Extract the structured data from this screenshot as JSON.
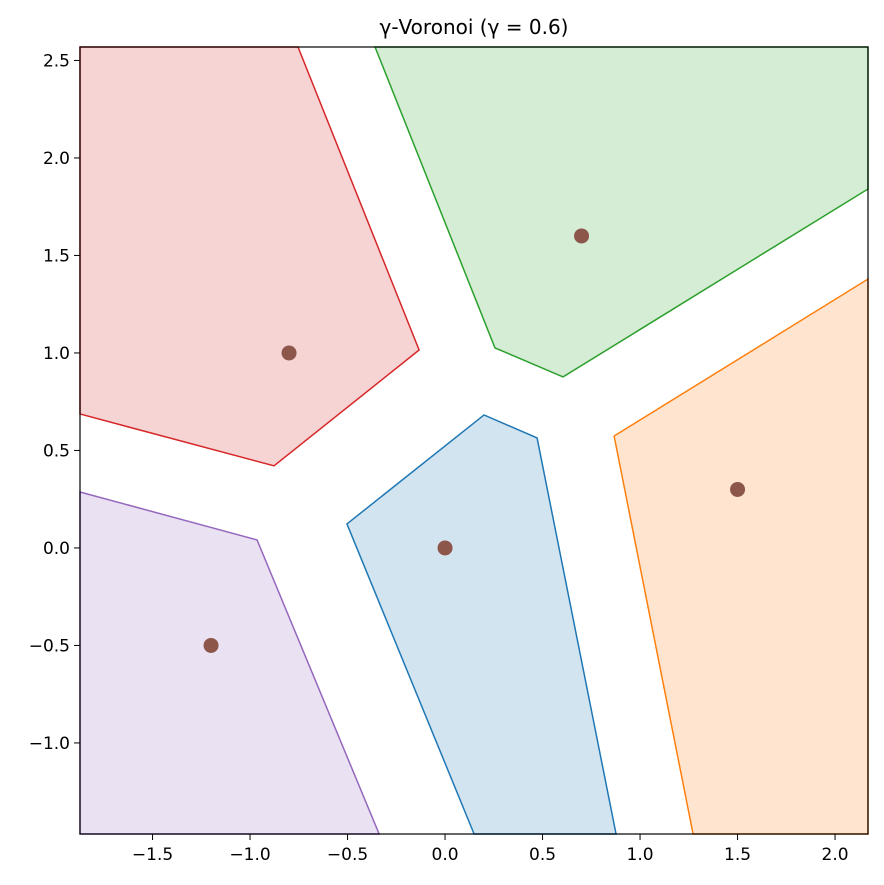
{
  "chart_data": {
    "type": "polygon",
    "title": "γ-Voronoi (γ = 0.6)",
    "xlim": [
      -1.872,
      2.169
    ],
    "ylim": [
      -1.467,
      2.569
    ],
    "xticks": [
      {
        "value": -1.5,
        "label": "−1.5"
      },
      {
        "value": -1.0,
        "label": "−1.0"
      },
      {
        "value": -0.5,
        "label": "−0.5"
      },
      {
        "value": 0.0,
        "label": "0.0"
      },
      {
        "value": 0.5,
        "label": "0.5"
      },
      {
        "value": 1.0,
        "label": "1.0"
      },
      {
        "value": 1.5,
        "label": "1.5"
      },
      {
        "value": 2.0,
        "label": "2.0"
      }
    ],
    "yticks": [
      {
        "value": -1.0,
        "label": "−1.0"
      },
      {
        "value": -0.5,
        "label": "−0.5"
      },
      {
        "value": 0.0,
        "label": "0.0"
      },
      {
        "value": 0.5,
        "label": "0.5"
      },
      {
        "value": 1.0,
        "label": "1.0"
      },
      {
        "value": 1.5,
        "label": "1.5"
      },
      {
        "value": 2.0,
        "label": "2.0"
      },
      {
        "value": 2.5,
        "label": "2.5"
      }
    ],
    "fill_opacity": 0.2,
    "series": [
      {
        "color": "#1f77b4",
        "x": [
          -0.503,
          0.2,
          0.472,
          0.877,
          0.149
        ],
        "y": [
          0.123,
          0.682,
          0.564,
          -1.467,
          -1.467
        ]
      },
      {
        "color": "#ff7f0e",
        "x": [
          0.867,
          2.169,
          2.169,
          1.272
        ],
        "y": [
          0.574,
          1.379,
          -1.467,
          -1.467
        ]
      },
      {
        "color": "#2ca02c",
        "x": [
          -0.359,
          2.169,
          2.169,
          0.605,
          0.256
        ],
        "y": [
          2.569,
          2.569,
          1.841,
          0.877,
          1.026
        ]
      },
      {
        "color": "#d62728",
        "x": [
          -1.872,
          -0.754,
          -0.133,
          -0.877,
          -1.872
        ],
        "y": [
          2.569,
          2.569,
          1.015,
          0.421,
          0.687
        ]
      },
      {
        "color": "#9467bd",
        "x": [
          -1.872,
          -0.964,
          -0.338,
          -1.872
        ],
        "y": [
          0.287,
          0.041,
          -1.467,
          -1.467
        ]
      }
    ],
    "points": {
      "color": "#8c564b",
      "x": [
        0,
        1.5,
        0.7,
        -0.8,
        -1.2
      ],
      "y": [
        0,
        0.3,
        1.6,
        1.0,
        -0.5
      ]
    }
  }
}
